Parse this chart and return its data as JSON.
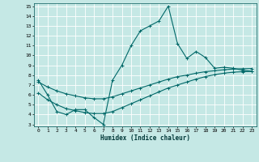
{
  "title": "",
  "xlabel": "Humidex (Indice chaleur)",
  "xlim": [
    -0.5,
    23.5
  ],
  "ylim": [
    2.8,
    15.3
  ],
  "yticks": [
    3,
    4,
    5,
    6,
    7,
    8,
    9,
    10,
    11,
    12,
    13,
    14,
    15
  ],
  "xticks": [
    0,
    1,
    2,
    3,
    4,
    5,
    6,
    7,
    8,
    9,
    10,
    11,
    12,
    13,
    14,
    15,
    16,
    17,
    18,
    19,
    20,
    21,
    22,
    23
  ],
  "bg_color": "#c5e8e5",
  "line_color": "#006868",
  "grid_color": "#e0f0f0",
  "line1_x": [
    0,
    1,
    2,
    3,
    4,
    5,
    6,
    7,
    8,
    9,
    10,
    11,
    12,
    13,
    14,
    15,
    16,
    17,
    18,
    19,
    20,
    21,
    22,
    23
  ],
  "line1_y": [
    7.5,
    6.0,
    4.3,
    4.0,
    4.5,
    4.5,
    3.7,
    3.0,
    7.5,
    9.0,
    11.0,
    12.5,
    13.0,
    13.5,
    15.0,
    11.2,
    9.7,
    10.4,
    9.8,
    8.7,
    8.8,
    8.7,
    8.5,
    8.4
  ],
  "line2_x": [
    0,
    1,
    2,
    3,
    4,
    5,
    6,
    7,
    8,
    9,
    10,
    11,
    12,
    13,
    14,
    15,
    16,
    17,
    18,
    19,
    20,
    21,
    22,
    23
  ],
  "line2_y": [
    7.3,
    6.8,
    6.4,
    6.1,
    5.9,
    5.7,
    5.6,
    5.6,
    5.8,
    6.1,
    6.4,
    6.7,
    7.0,
    7.3,
    7.6,
    7.85,
    8.0,
    8.2,
    8.35,
    8.45,
    8.55,
    8.62,
    8.65,
    8.67
  ],
  "line3_x": [
    0,
    1,
    2,
    3,
    4,
    5,
    6,
    7,
    8,
    9,
    10,
    11,
    12,
    13,
    14,
    15,
    16,
    17,
    18,
    19,
    20,
    21,
    22,
    23
  ],
  "line3_y": [
    6.2,
    5.5,
    5.0,
    4.6,
    4.4,
    4.2,
    4.1,
    4.1,
    4.3,
    4.7,
    5.1,
    5.5,
    5.9,
    6.3,
    6.7,
    7.0,
    7.3,
    7.6,
    7.85,
    8.05,
    8.2,
    8.3,
    8.35,
    8.38
  ]
}
